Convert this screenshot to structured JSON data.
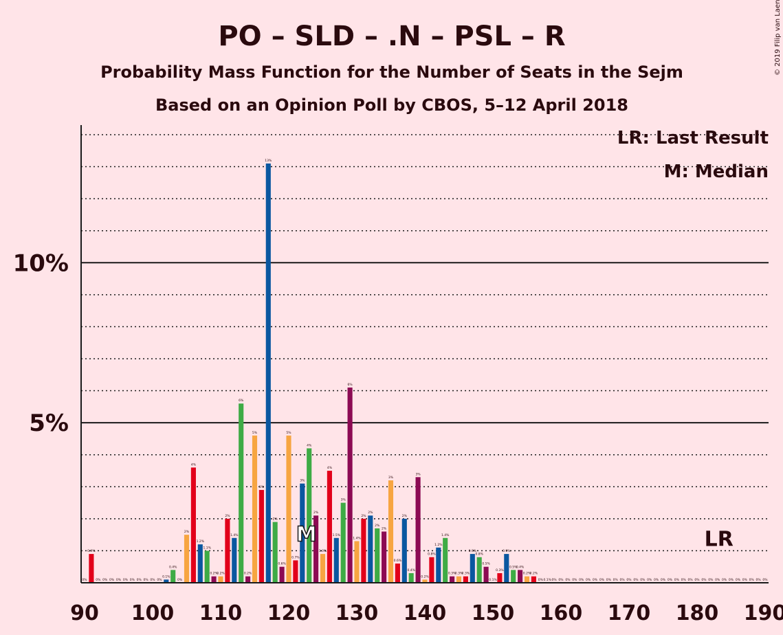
{
  "chart_data": {
    "type": "bar",
    "title": "PO – SLD – .N – PSL – R",
    "subtitle": "Probability Mass Function for the Number of Seats in the Sejm",
    "subtitle2": "Based on an Opinion Poll by CBOS, 5–12 April 2018",
    "copyright": "© 2019 Filip van Laenen",
    "legend_lr": "LR: Last Result",
    "legend_m": "M: Median",
    "lr_label": "LR",
    "median_label": "M",
    "lr_x": 183,
    "median_x": 123,
    "xlim": [
      90,
      190
    ],
    "ylim": [
      0,
      14.3
    ],
    "x_ticks": [
      90,
      100,
      110,
      120,
      130,
      140,
      150,
      160,
      170,
      180,
      190
    ],
    "y_ticks": [
      {
        "value": 5,
        "label": "5%"
      },
      {
        "value": 10,
        "label": "10%"
      }
    ],
    "colors": {
      "po": "#0A57A0",
      "sld": "#E2001A",
      "n": "#F7A541",
      "psl": "#3EAB45",
      "r": "#8C0A53",
      "background": "#FFE4E8",
      "text": "#2A0A0E"
    },
    "bars": [
      {
        "x": 90,
        "value": 0.0,
        "label": "0%",
        "color": "po"
      },
      {
        "x": 91,
        "value": 0.9,
        "label": "0.9%",
        "color": "sld"
      },
      {
        "x": 92,
        "value": 0.0,
        "label": "0%",
        "color": "n"
      },
      {
        "x": 93,
        "value": 0.0,
        "label": "0%",
        "color": "psl"
      },
      {
        "x": 94,
        "value": 0.0,
        "label": "0%",
        "color": "r"
      },
      {
        "x": 95,
        "value": 0.0,
        "label": "0%",
        "color": "po"
      },
      {
        "x": 96,
        "value": 0.0,
        "label": "0%",
        "color": "sld"
      },
      {
        "x": 97,
        "value": 0.0,
        "label": "0%",
        "color": "n"
      },
      {
        "x": 98,
        "value": 0.0,
        "label": "0%",
        "color": "psl"
      },
      {
        "x": 99,
        "value": 0.0,
        "label": "0%",
        "color": "r"
      },
      {
        "x": 100,
        "value": 0.0,
        "label": "0%",
        "color": "po"
      },
      {
        "x": 101,
        "value": 0.0,
        "label": "0%",
        "color": "sld"
      },
      {
        "x": 102,
        "value": 0.1,
        "label": "0.1%",
        "color": "po"
      },
      {
        "x": 103,
        "value": 0.4,
        "label": "0.4%",
        "color": "psl"
      },
      {
        "x": 104,
        "value": 0.0,
        "label": "0%",
        "color": "r"
      },
      {
        "x": 105,
        "value": 1.5,
        "label": "2%",
        "color": "n"
      },
      {
        "x": 106,
        "value": 3.6,
        "label": "4%",
        "color": "sld"
      },
      {
        "x": 107,
        "value": 1.2,
        "label": "1.2%",
        "color": "po"
      },
      {
        "x": 108,
        "value": 1.0,
        "label": "1.1%",
        "color": "psl"
      },
      {
        "x": 109,
        "value": 0.2,
        "label": "0.2%",
        "color": "r"
      },
      {
        "x": 110,
        "value": 0.2,
        "label": "0.2%",
        "color": "n"
      },
      {
        "x": 111,
        "value": 2.0,
        "label": "2%",
        "color": "sld"
      },
      {
        "x": 112,
        "value": 1.4,
        "label": "1.4%",
        "color": "po"
      },
      {
        "x": 113,
        "value": 5.6,
        "label": "6%",
        "color": "psl"
      },
      {
        "x": 114,
        "value": 0.2,
        "label": "0.2%",
        "color": "r"
      },
      {
        "x": 115,
        "value": 4.6,
        "label": "5%",
        "color": "n"
      },
      {
        "x": 116,
        "value": 2.9,
        "label": "3%",
        "color": "sld"
      },
      {
        "x": 117,
        "value": 13.1,
        "label": "13%",
        "color": "po"
      },
      {
        "x": 118,
        "value": 1.9,
        "label": "2%",
        "color": "psl"
      },
      {
        "x": 119,
        "value": 0.5,
        "label": "0.6%",
        "color": "r"
      },
      {
        "x": 120,
        "value": 4.6,
        "label": "5%",
        "color": "n"
      },
      {
        "x": 121,
        "value": 0.7,
        "label": "0.7%",
        "color": "sld"
      },
      {
        "x": 122,
        "value": 3.1,
        "label": "3%",
        "color": "po"
      },
      {
        "x": 123,
        "value": 4.2,
        "label": "4%",
        "color": "psl"
      },
      {
        "x": 124,
        "value": 2.1,
        "label": "2%",
        "color": "r"
      },
      {
        "x": 125,
        "value": 0.9,
        "label": "1.0%",
        "color": "n"
      },
      {
        "x": 126,
        "value": 3.5,
        "label": "4%",
        "color": "sld"
      },
      {
        "x": 127,
        "value": 1.4,
        "label": "1.5%",
        "color": "po"
      },
      {
        "x": 128,
        "value": 2.5,
        "label": "3%",
        "color": "psl"
      },
      {
        "x": 129,
        "value": 6.1,
        "label": "6%",
        "color": "r"
      },
      {
        "x": 130,
        "value": 1.3,
        "label": "1.4%",
        "color": "n"
      },
      {
        "x": 131,
        "value": 2.0,
        "label": "2%",
        "color": "sld"
      },
      {
        "x": 132,
        "value": 2.1,
        "label": "2%",
        "color": "po"
      },
      {
        "x": 133,
        "value": 1.7,
        "label": "2%",
        "color": "psl"
      },
      {
        "x": 134,
        "value": 1.6,
        "label": "2%",
        "color": "r"
      },
      {
        "x": 135,
        "value": 3.2,
        "label": "3%",
        "color": "n"
      },
      {
        "x": 136,
        "value": 0.6,
        "label": "0.6%",
        "color": "sld"
      },
      {
        "x": 137,
        "value": 2.0,
        "label": "2%",
        "color": "po"
      },
      {
        "x": 138,
        "value": 0.3,
        "label": "0.4%",
        "color": "psl"
      },
      {
        "x": 139,
        "value": 3.3,
        "label": "3%",
        "color": "r"
      },
      {
        "x": 140,
        "value": 0.1,
        "label": "0.2%",
        "color": "n"
      },
      {
        "x": 141,
        "value": 0.8,
        "label": "0.8%",
        "color": "sld"
      },
      {
        "x": 142,
        "value": 1.1,
        "label": "1.2%",
        "color": "po"
      },
      {
        "x": 143,
        "value": 1.4,
        "label": "1.4%",
        "color": "psl"
      },
      {
        "x": 144,
        "value": 0.2,
        "label": "0.3%",
        "color": "r"
      },
      {
        "x": 145,
        "value": 0.2,
        "label": "0.3%",
        "color": "n"
      },
      {
        "x": 146,
        "value": 0.2,
        "label": "0.3%",
        "color": "sld"
      },
      {
        "x": 147,
        "value": 0.9,
        "label": "0.9%",
        "color": "po"
      },
      {
        "x": 148,
        "value": 0.8,
        "label": "0.8%",
        "color": "psl"
      },
      {
        "x": 149,
        "value": 0.5,
        "label": "0.5%",
        "color": "r"
      },
      {
        "x": 150,
        "value": 0.0,
        "label": "0.1%",
        "color": "n"
      },
      {
        "x": 151,
        "value": 0.3,
        "label": "0.3%",
        "color": "sld"
      },
      {
        "x": 152,
        "value": 0.9,
        "label": "0.9%",
        "color": "po"
      },
      {
        "x": 153,
        "value": 0.4,
        "label": "0.5%",
        "color": "psl"
      },
      {
        "x": 154,
        "value": 0.4,
        "label": "0.4%",
        "color": "r"
      },
      {
        "x": 155,
        "value": 0.2,
        "label": "0.2%",
        "color": "n"
      },
      {
        "x": 156,
        "value": 0.2,
        "label": "0.2%",
        "color": "sld"
      },
      {
        "x": 157,
        "value": 0.0,
        "label": "0%",
        "color": "po"
      },
      {
        "x": 158,
        "value": 0.0,
        "label": "0.1%",
        "color": "psl"
      },
      {
        "x": 159,
        "value": 0.0,
        "label": "0%",
        "color": "r"
      },
      {
        "x": 160,
        "value": 0.0,
        "label": "0%",
        "color": "n"
      },
      {
        "x": 161,
        "value": 0.0,
        "label": "0%",
        "color": "sld"
      },
      {
        "x": 162,
        "value": 0.0,
        "label": "0%",
        "color": "po"
      },
      {
        "x": 163,
        "value": 0.0,
        "label": "0%",
        "color": "psl"
      },
      {
        "x": 164,
        "value": 0.0,
        "label": "0%",
        "color": "r"
      },
      {
        "x": 165,
        "value": 0.0,
        "label": "0%",
        "color": "n"
      },
      {
        "x": 166,
        "value": 0.0,
        "label": "0%",
        "color": "sld"
      },
      {
        "x": 167,
        "value": 0.0,
        "label": "0%",
        "color": "po"
      },
      {
        "x": 168,
        "value": 0.0,
        "label": "0%",
        "color": "psl"
      },
      {
        "x": 169,
        "value": 0.0,
        "label": "0%",
        "color": "r"
      },
      {
        "x": 170,
        "value": 0.0,
        "label": "0%",
        "color": "n"
      },
      {
        "x": 171,
        "value": 0.0,
        "label": "0%",
        "color": "sld"
      },
      {
        "x": 172,
        "value": 0.0,
        "label": "0%",
        "color": "po"
      },
      {
        "x": 173,
        "value": 0.0,
        "label": "0%",
        "color": "psl"
      },
      {
        "x": 174,
        "value": 0.0,
        "label": "0%",
        "color": "r"
      },
      {
        "x": 175,
        "value": 0.0,
        "label": "0%",
        "color": "n"
      },
      {
        "x": 176,
        "value": 0.0,
        "label": "0%",
        "color": "sld"
      },
      {
        "x": 177,
        "value": 0.0,
        "label": "0%",
        "color": "po"
      },
      {
        "x": 178,
        "value": 0.0,
        "label": "0%",
        "color": "psl"
      },
      {
        "x": 179,
        "value": 0.0,
        "label": "0%",
        "color": "r"
      },
      {
        "x": 180,
        "value": 0.0,
        "label": "0%",
        "color": "n"
      },
      {
        "x": 181,
        "value": 0.0,
        "label": "0%",
        "color": "sld"
      },
      {
        "x": 182,
        "value": 0.0,
        "label": "0%",
        "color": "po"
      },
      {
        "x": 183,
        "value": 0.0,
        "label": "0%",
        "color": "psl"
      },
      {
        "x": 184,
        "value": 0.0,
        "label": "0%",
        "color": "r"
      },
      {
        "x": 185,
        "value": 0.0,
        "label": "0%",
        "color": "n"
      },
      {
        "x": 186,
        "value": 0.0,
        "label": "0%",
        "color": "sld"
      },
      {
        "x": 187,
        "value": 0.0,
        "label": "0%",
        "color": "po"
      },
      {
        "x": 188,
        "value": 0.0,
        "label": "0%",
        "color": "psl"
      },
      {
        "x": 189,
        "value": 0.0,
        "label": "0%",
        "color": "r"
      },
      {
        "x": 190,
        "value": 0.0,
        "label": "0%",
        "color": "n"
      }
    ]
  }
}
